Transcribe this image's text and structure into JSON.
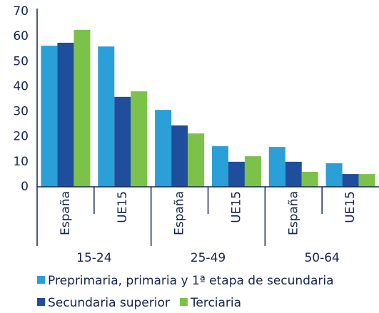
{
  "chart_data": {
    "type": "bar",
    "groups": [
      "15-24",
      "25-49",
      "50-64"
    ],
    "categories": [
      "España",
      "UE15",
      "España",
      "UE15",
      "España",
      "UE15"
    ],
    "series": [
      {
        "name": "Preprimaria, primaria y 1ª etapa de secundaria",
        "color": "#2a9fd8",
        "values": [
          56.3,
          56,
          30.7,
          16.2,
          15.9,
          9.4
        ]
      },
      {
        "name": "Secundaria superior",
        "color": "#1f4e9c",
        "values": [
          57.5,
          35.9,
          24.5,
          10,
          10,
          5.1
        ]
      },
      {
        "name": "Terciaria",
        "color": "#7cc24a",
        "values": [
          62.6,
          38.1,
          21.3,
          12.2,
          6,
          5.1
        ]
      }
    ],
    "ylim": [
      0,
      70
    ],
    "yticks": [
      0,
      10,
      20,
      30,
      40,
      50,
      60,
      70
    ]
  }
}
